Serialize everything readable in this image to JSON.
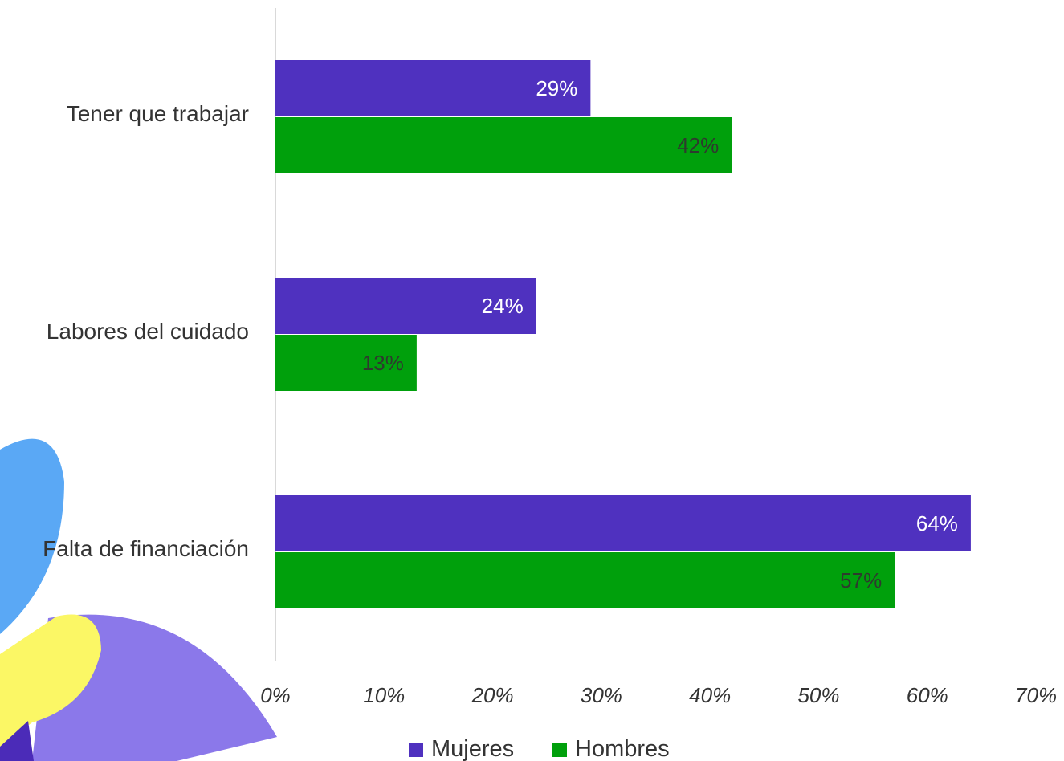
{
  "colors": {
    "mujeres": "#4f31bf",
    "hombres": "#00a00c",
    "deco_blue": "#5aa8f5",
    "deco_purple": "#8b78ea",
    "deco_yellow": "#fbf765",
    "deco_dark": "#4b2bb8",
    "axis": "#d9d9d9"
  },
  "chart_data": {
    "type": "bar",
    "orientation": "horizontal",
    "categories": [
      "Tener que trabajar",
      "Labores del cuidado",
      "Falta de financiación"
    ],
    "series": [
      {
        "name": "Mujeres",
        "values": [
          29,
          24,
          64
        ],
        "labels": [
          "29%",
          "24%",
          "64%"
        ],
        "label_color": "#ffffff"
      },
      {
        "name": "Hombres",
        "values": [
          42,
          13,
          57
        ],
        "labels": [
          "42%",
          "13%",
          "57%"
        ],
        "label_color": "#2e3a2e"
      }
    ],
    "xlim": [
      0,
      70
    ],
    "xticks": [
      0,
      10,
      20,
      30,
      40,
      50,
      60,
      70
    ],
    "xtick_labels": [
      "0%",
      "10%",
      "20%",
      "30%",
      "40%",
      "50%",
      "60%",
      "70%"
    ],
    "grid": false,
    "legend_position": "bottom"
  }
}
